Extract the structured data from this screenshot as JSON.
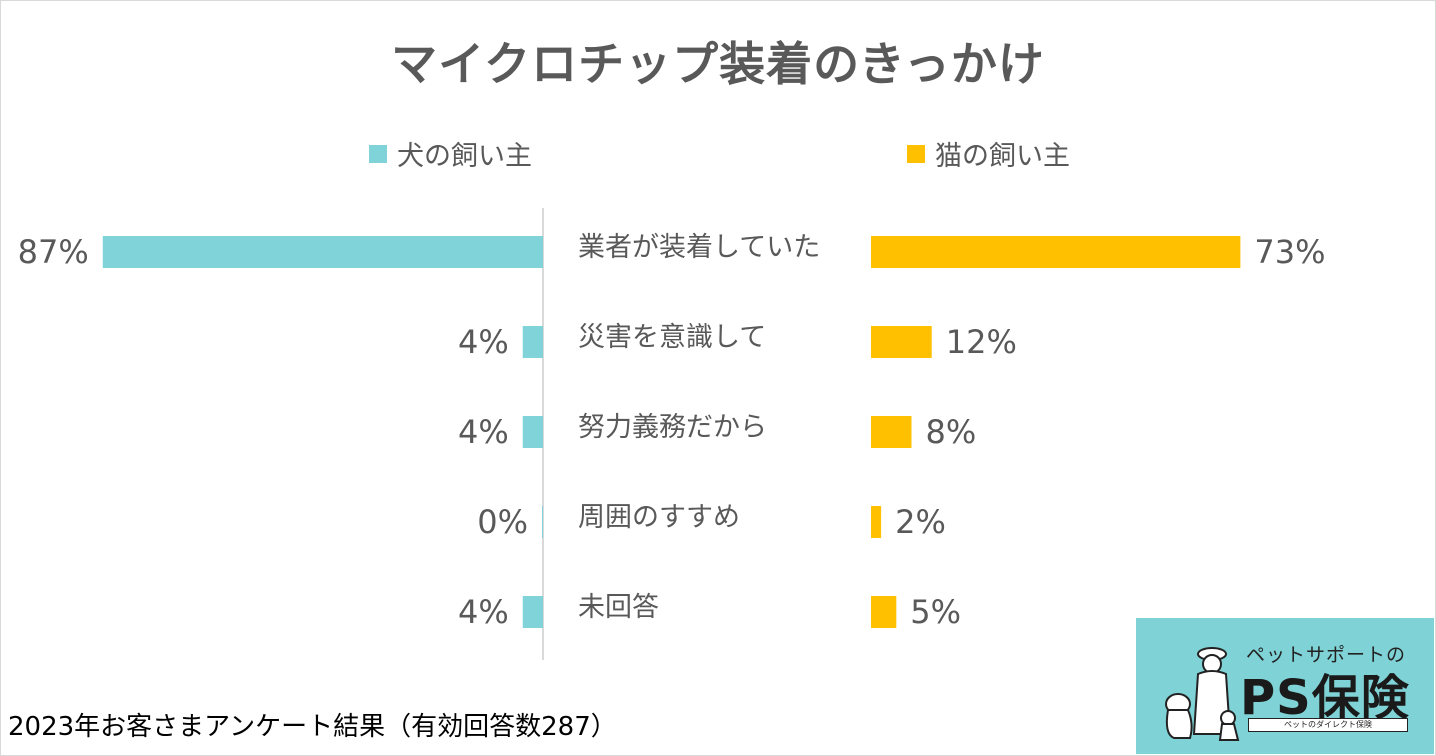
{
  "title": "マイクロチップ装着のきっかけ",
  "legend": {
    "dog": "犬の飼い主",
    "cat": "猫の飼い主"
  },
  "colors": {
    "dog": "#7fd3d9",
    "cat": "#ffc000",
    "text": "#595959",
    "axis": "#d9d9d9"
  },
  "chart_data": {
    "type": "bar",
    "orientation": "horizontal-butterfly",
    "categories": [
      "業者が装着していた",
      "災害を意識して",
      "努力義務だから",
      "周囲のすすめ",
      "未回答"
    ],
    "series": [
      {
        "name": "犬の飼い主",
        "values": [
          87,
          4,
          4,
          0,
          4
        ],
        "labels": [
          "87%",
          "4%",
          "4%",
          "0%",
          "4%"
        ]
      },
      {
        "name": "猫の飼い主",
        "values": [
          73,
          12,
          8,
          2,
          5
        ],
        "labels": [
          "73%",
          "12%",
          "8%",
          "2%",
          "5%"
        ]
      }
    ],
    "unit": "%",
    "xlim": [
      0,
      100
    ]
  },
  "source_note": "2023年お客さまアンケート結果（有効回答数287）",
  "logo": {
    "subtitle": "ペットサポートの",
    "name": "PS保険",
    "tagline": "ペットのダイレクト保険",
    "figure_icon": "person-with-pets-icon"
  }
}
